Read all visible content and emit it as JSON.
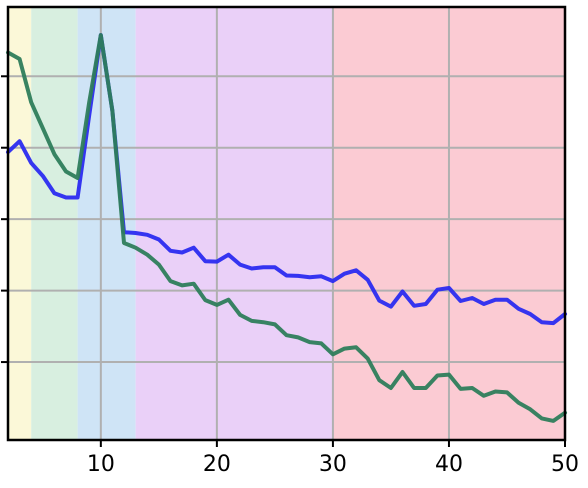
{
  "chart_data": {
    "type": "line",
    "title": "",
    "xlabel": "",
    "ylabel": "",
    "xlim": [
      2,
      50
    ],
    "ylim": [
      0,
      1
    ],
    "grid": true,
    "x_ticks": [
      10,
      20,
      30,
      40,
      50
    ],
    "x_tick_labels": [
      "10",
      "20",
      "30",
      "40",
      "50"
    ],
    "y_ticks": [
      0.18,
      0.345,
      0.51,
      0.675,
      0.84
    ],
    "background_bands": [
      {
        "from": 2,
        "to": 4,
        "color": "#fbf8d8"
      },
      {
        "from": 4,
        "to": 8,
        "color": "#d8efe0"
      },
      {
        "from": 8,
        "to": 13,
        "color": "#cfe4f6"
      },
      {
        "from": 13,
        "to": 30,
        "color": "#ead0f8"
      },
      {
        "from": 30,
        "to": 50,
        "color": "#fbcbd3"
      }
    ],
    "x": [
      2,
      3,
      4,
      5,
      6,
      7,
      8,
      9,
      10,
      11,
      12,
      13,
      14,
      15,
      16,
      17,
      18,
      19,
      20,
      21,
      22,
      23,
      24,
      25,
      26,
      27,
      28,
      29,
      30,
      31,
      32,
      33,
      34,
      35,
      36,
      37,
      38,
      39,
      40,
      41,
      42,
      43,
      44,
      45,
      46,
      47,
      48,
      49,
      50
    ],
    "series": [
      {
        "color": "#2b2bf0",
        "values": [
          0.665,
          0.69,
          0.64,
          0.61,
          0.57,
          0.56,
          0.56,
          0.75,
          0.935,
          0.76,
          0.48,
          0.478,
          0.474,
          0.463,
          0.437,
          0.433,
          0.444,
          0.413,
          0.412,
          0.428,
          0.405,
          0.396,
          0.399,
          0.399,
          0.38,
          0.379,
          0.376,
          0.378,
          0.367,
          0.384,
          0.392,
          0.37,
          0.322,
          0.308,
          0.343,
          0.31,
          0.314,
          0.347,
          0.351,
          0.321,
          0.328,
          0.314,
          0.324,
          0.324,
          0.303,
          0.291,
          0.272,
          0.27,
          0.291
        ]
      },
      {
        "color": "#2e7d5b",
        "values": [
          0.895,
          0.88,
          0.78,
          0.72,
          0.66,
          0.62,
          0.605,
          0.78,
          0.935,
          0.76,
          0.455,
          0.444,
          0.428,
          0.405,
          0.367,
          0.357,
          0.361,
          0.323,
          0.312,
          0.324,
          0.289,
          0.275,
          0.272,
          0.267,
          0.242,
          0.237,
          0.226,
          0.223,
          0.198,
          0.211,
          0.214,
          0.188,
          0.138,
          0.12,
          0.157,
          0.12,
          0.12,
          0.149,
          0.151,
          0.118,
          0.12,
          0.102,
          0.112,
          0.11,
          0.086,
          0.071,
          0.05,
          0.044,
          0.063
        ]
      }
    ]
  }
}
